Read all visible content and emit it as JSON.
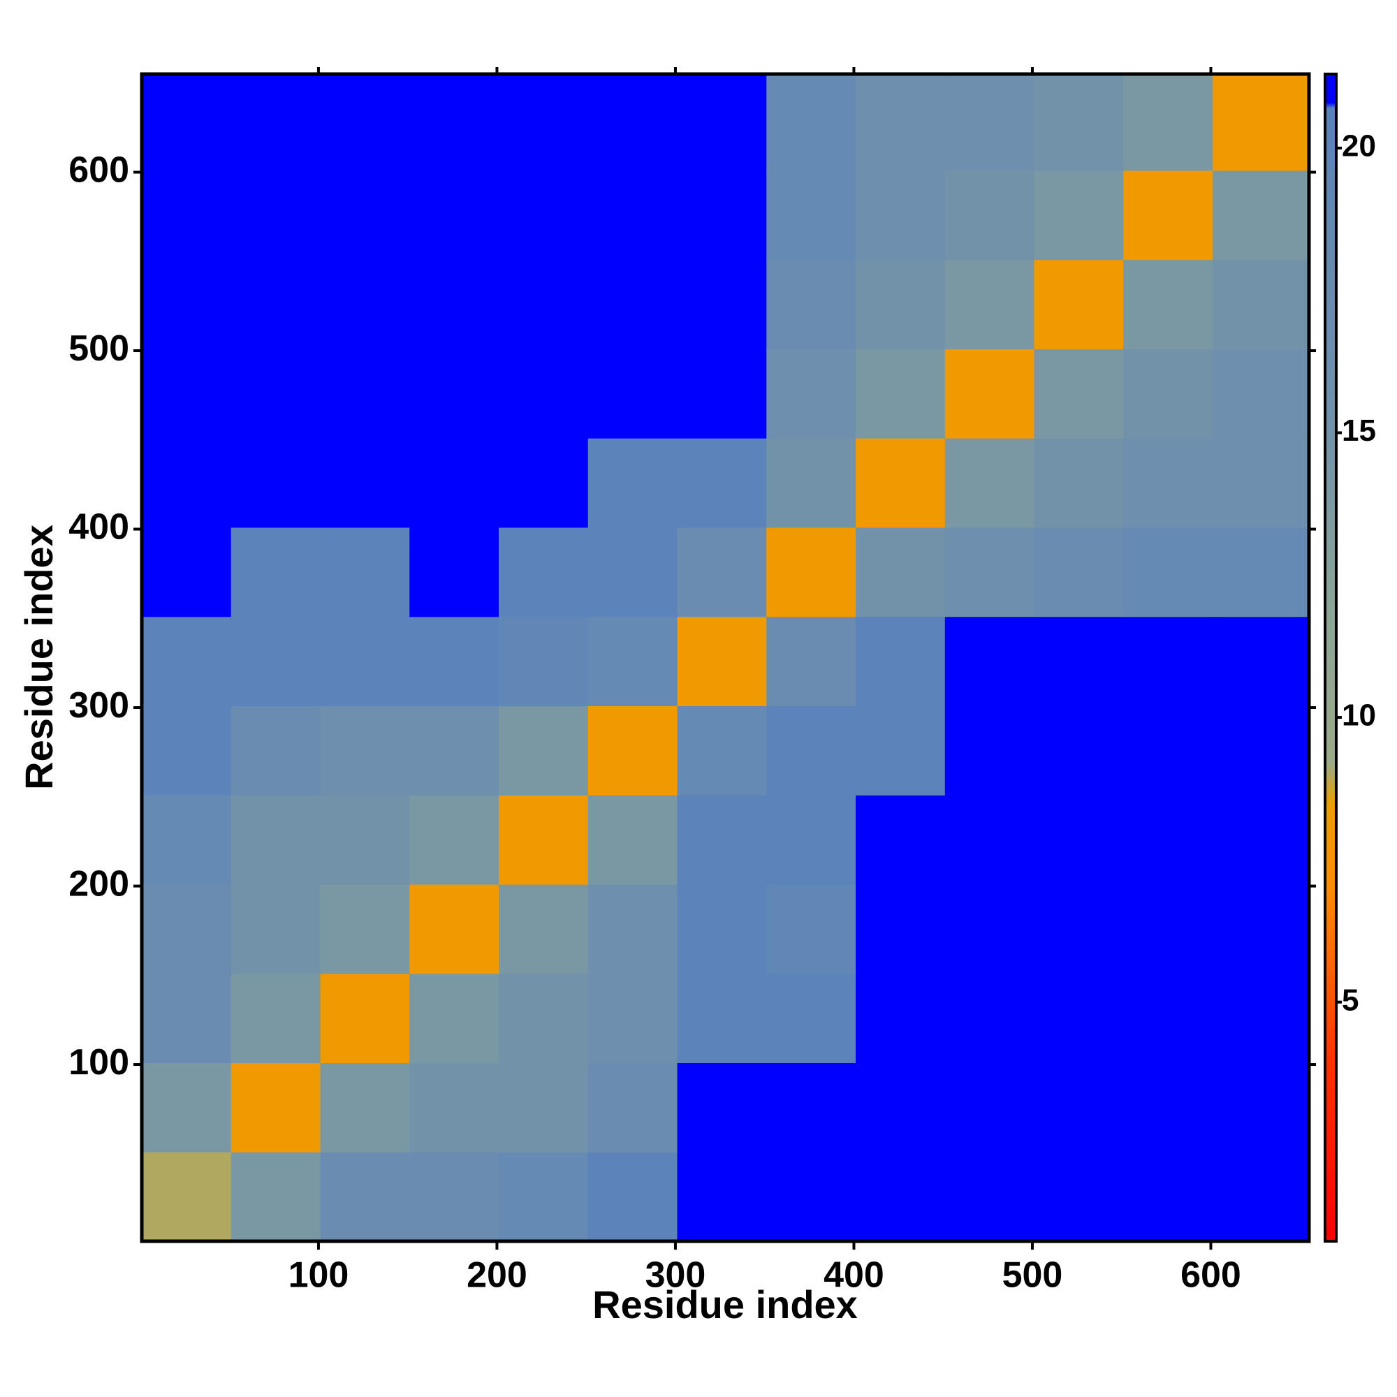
{
  "chart_data": {
    "type": "heatmap",
    "x_label": "Residue index",
    "y_label": "Residue index",
    "x_edges": [
      1,
      51,
      101,
      151,
      201,
      251,
      301,
      351,
      401,
      451,
      501,
      551,
      601,
      655
    ],
    "y_edges": [
      1,
      51,
      101,
      151,
      201,
      251,
      301,
      351,
      401,
      451,
      501,
      551,
      601,
      655
    ],
    "matrix": [
      [
        9,
        14,
        17,
        17,
        18,
        20,
        21,
        21,
        21,
        21,
        21,
        21,
        21
      ],
      [
        14,
        8,
        14,
        15,
        15,
        17,
        21,
        21,
        21,
        21,
        21,
        21,
        21
      ],
      [
        17,
        14,
        8,
        14,
        15,
        16,
        20,
        20,
        21,
        21,
        21,
        21,
        21
      ],
      [
        17,
        15,
        14,
        8,
        14,
        16,
        20,
        19,
        21,
        21,
        21,
        21,
        21
      ],
      [
        18,
        15,
        15,
        14,
        8,
        14,
        20,
        20,
        21,
        21,
        21,
        21,
        21
      ],
      [
        20,
        17,
        16,
        16,
        14,
        8,
        18,
        20,
        20,
        21,
        21,
        21,
        21
      ],
      [
        20,
        20,
        20,
        20,
        19,
        18,
        8,
        17,
        20,
        21,
        21,
        21,
        21
      ],
      [
        21,
        20,
        20,
        21,
        20,
        20,
        17,
        8,
        15,
        16,
        17,
        18,
        18
      ],
      [
        21,
        21,
        21,
        21,
        21,
        20,
        20,
        15,
        8,
        14,
        15,
        16,
        16
      ],
      [
        21,
        21,
        21,
        21,
        21,
        21,
        21,
        16,
        14,
        8,
        14,
        15,
        16
      ],
      [
        21,
        21,
        21,
        21,
        21,
        21,
        21,
        17,
        15,
        14,
        8,
        14,
        15
      ],
      [
        21,
        21,
        21,
        21,
        21,
        21,
        21,
        18,
        16,
        15,
        14,
        8,
        14
      ],
      [
        21,
        21,
        21,
        21,
        21,
        21,
        21,
        18,
        16,
        16,
        15,
        14,
        8
      ]
    ],
    "xlim": [
      1,
      655
    ],
    "ylim": [
      1,
      655
    ],
    "xticks": [
      100,
      200,
      300,
      400,
      500,
      600
    ],
    "yticks": [
      100,
      200,
      300,
      400,
      500,
      600
    ],
    "zlim": [
      0.8,
      21.3
    ],
    "zticks": [
      5,
      10,
      15,
      20
    ],
    "colorscale": [
      {
        "value": 0.8,
        "color": "#ff0000"
      },
      {
        "value": 4,
        "color": "#ff3300"
      },
      {
        "value": 7,
        "color": "#ff8c00"
      },
      {
        "value": 8.5,
        "color": "#e8a000"
      },
      {
        "value": 9.2,
        "color": "#9aaa88"
      },
      {
        "value": 12,
        "color": "#8aa496"
      },
      {
        "value": 15,
        "color": "#7292aa"
      },
      {
        "value": 20.7,
        "color": "#5a82bc"
      },
      {
        "value": 20.8,
        "color": "#0000ff"
      },
      {
        "value": 21.3,
        "color": "#0000ff"
      }
    ]
  }
}
